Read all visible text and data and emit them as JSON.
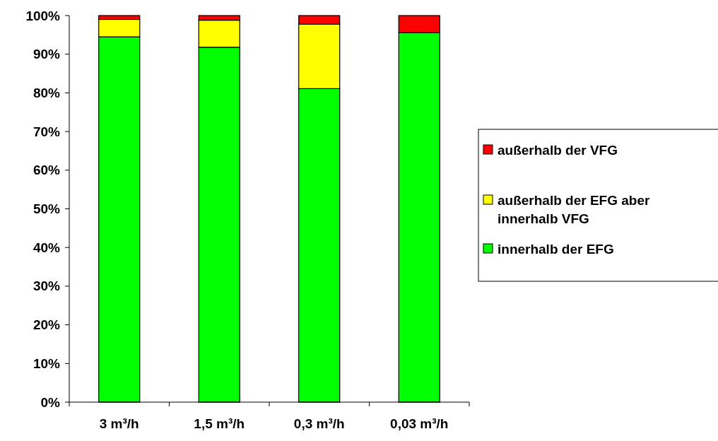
{
  "chart_data": {
    "type": "bar",
    "stacked": true,
    "categories": [
      "3 m³/h",
      "1,5 m³/h",
      "0,3 m³/h",
      "0,03 m³/h"
    ],
    "series": [
      {
        "name": "innerhalb der EFG",
        "color": "#00ff00",
        "values": [
          94.5,
          91.8,
          81.1,
          95.6
        ]
      },
      {
        "name": "außerhalb der EFG aber innerhalb VFG",
        "color": "#ffff00",
        "values": [
          4.5,
          7.0,
          16.7,
          null
        ]
      },
      {
        "name": "außerhalb der VFG",
        "color": "#ff0000",
        "values": [
          1.0,
          1.2,
          2.2,
          4.4
        ]
      }
    ],
    "ylim": [
      0,
      100
    ],
    "yticks": [
      {
        "value": 0,
        "label": "0%"
      },
      {
        "value": 10,
        "label": "10%"
      },
      {
        "value": 20,
        "label": "20%"
      },
      {
        "value": 30,
        "label": "30%"
      },
      {
        "value": 40,
        "label": "40%"
      },
      {
        "value": 50,
        "label": "50%"
      },
      {
        "value": 60,
        "label": "60%"
      },
      {
        "value": 70,
        "label": "70%"
      },
      {
        "value": 80,
        "label": "80%"
      },
      {
        "value": 90,
        "label": "90%"
      },
      {
        "value": 100,
        "label": "100%"
      }
    ],
    "grid": false,
    "legend": "right"
  }
}
